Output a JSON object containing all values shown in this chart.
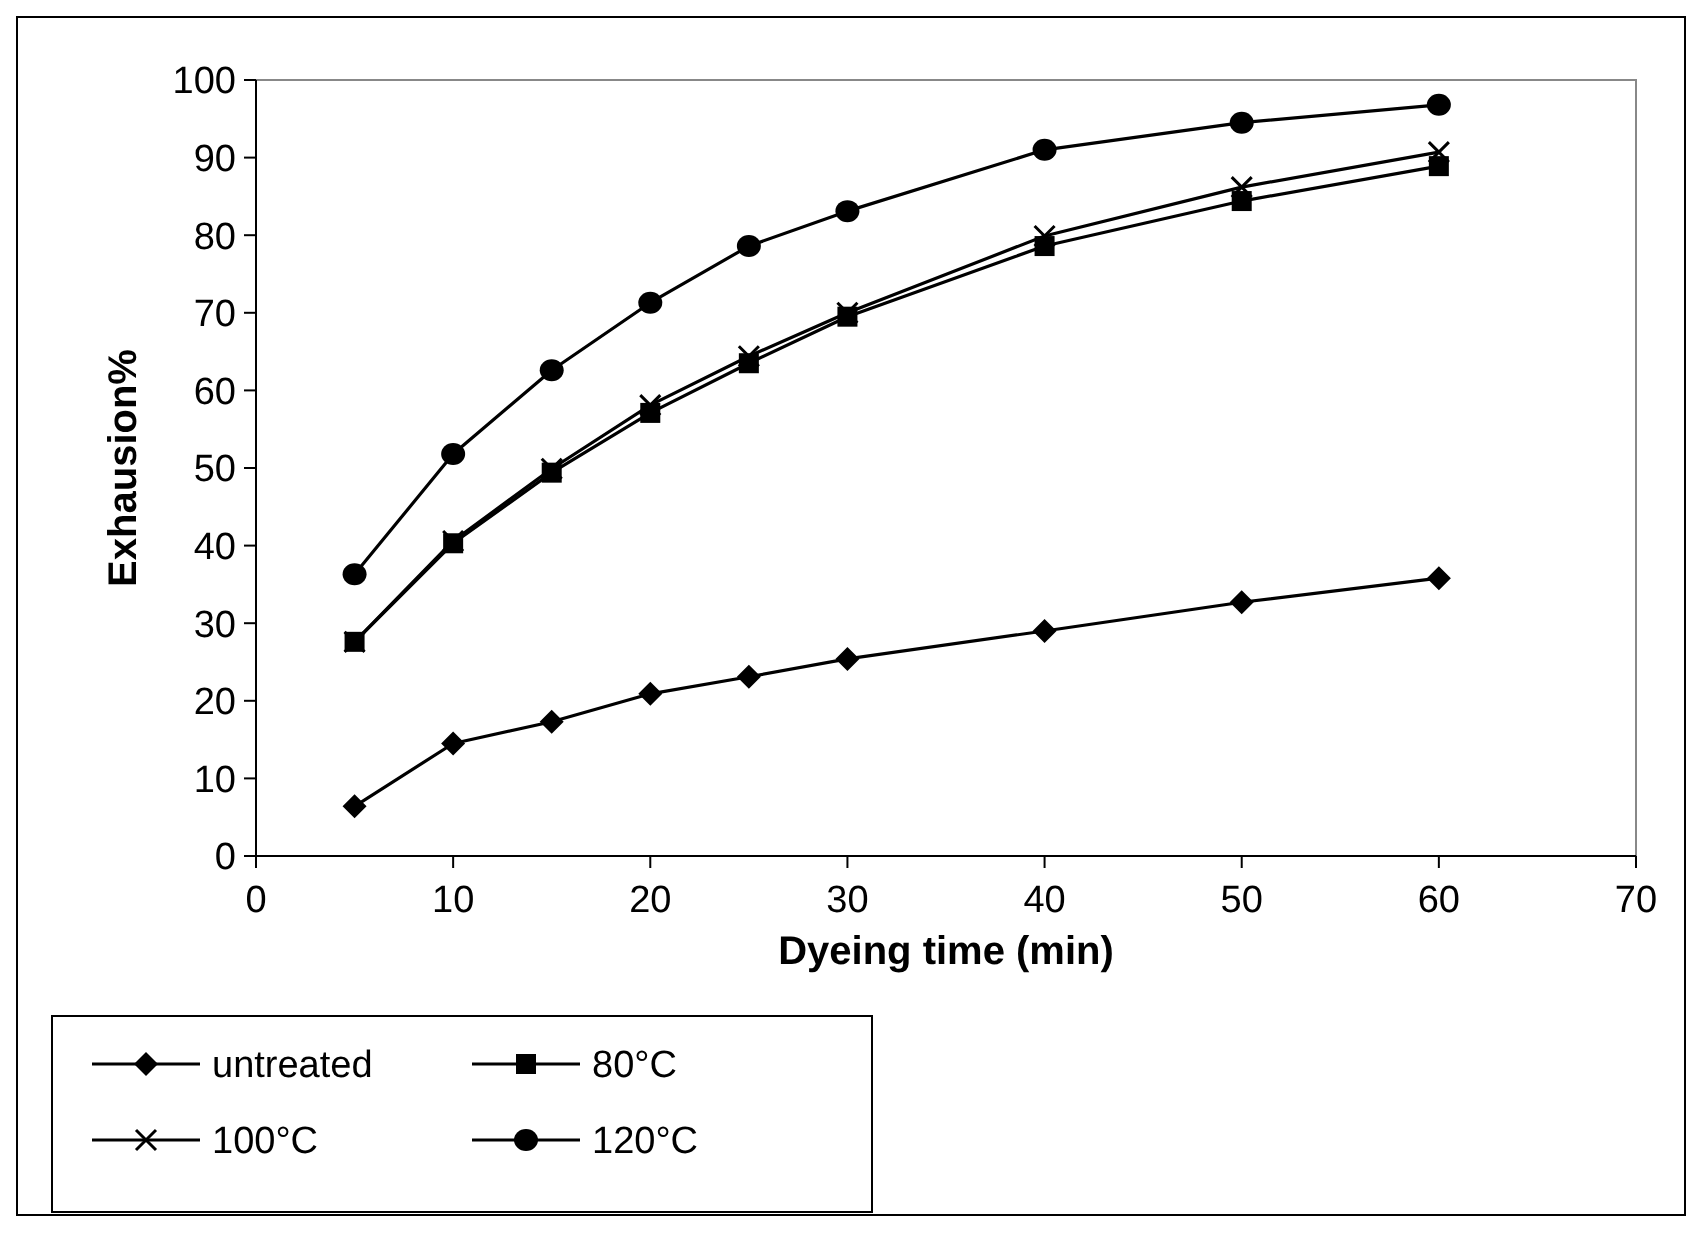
{
  "chart_data": {
    "type": "line",
    "xlabel": "Dyeing time (min)",
    "ylabel": "Exhausion%",
    "x": [
      5,
      10,
      15,
      20,
      25,
      30,
      40,
      50,
      60
    ],
    "xlim": [
      0,
      70
    ],
    "xticks": [
      0,
      10,
      20,
      30,
      40,
      50,
      60,
      70
    ],
    "ylim": [
      0,
      100
    ],
    "yticks": [
      0,
      10,
      20,
      30,
      40,
      50,
      60,
      70,
      80,
      90,
      100
    ],
    "grid": false,
    "legend": "bottom left",
    "line_style": "solid",
    "series": [
      {
        "name": "untreated",
        "color": "#000000",
        "marker": "diamond",
        "values": [
          6.4,
          14.5,
          17.3,
          20.9,
          23.1,
          25.4,
          29.0,
          32.7,
          35.8
        ]
      },
      {
        "name": "80°C",
        "color": "#000000",
        "marker": "square",
        "values": [
          27.6,
          40.3,
          49.4,
          57.1,
          63.5,
          69.5,
          78.6,
          84.4,
          88.9
        ]
      },
      {
        "name": "100°C",
        "color": "#000000",
        "marker": "cross",
        "values": [
          27.6,
          40.6,
          49.9,
          58.1,
          64.4,
          70.0,
          79.9,
          86.2,
          90.7
        ]
      },
      {
        "name": "120°C",
        "color": "#000000",
        "marker": "circle",
        "values": [
          36.3,
          51.8,
          62.6,
          71.3,
          78.6,
          83.1,
          91.0,
          94.5,
          96.8
        ]
      }
    ]
  }
}
